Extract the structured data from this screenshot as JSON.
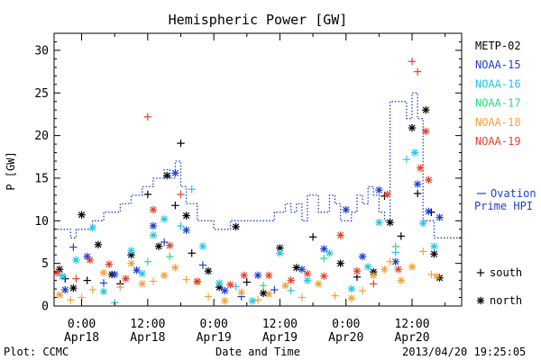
{
  "chart_data": {
    "type": "scatter",
    "title": "Hemispheric Power [GW]",
    "ylabel": "P [GW]",
    "xlabel": "Date and Time",
    "footer_left": "Plot: CCMC",
    "footer_right": "2013/04/20 19:25:05",
    "xlim": [
      "2013-04-17 19:00",
      "2013-04-20 21:00"
    ],
    "ylim": [
      0,
      32
    ],
    "yticks": [
      0,
      5,
      10,
      15,
      20,
      25,
      30
    ],
    "xticks": [
      {
        "x": "2013-04-18 00:00",
        "line1": "0:00",
        "line2": "Apr18"
      },
      {
        "x": "2013-04-18 12:00",
        "line1": "12:00",
        "line2": "Apr18"
      },
      {
        "x": "2013-04-19 00:00",
        "line1": "0:00",
        "line2": "Apr19"
      },
      {
        "x": "2013-04-19 12:00",
        "line1": "12:00",
        "line2": "Apr19"
      },
      {
        "x": "2013-04-20 00:00",
        "line1": "0:00",
        "line2": "Apr20"
      },
      {
        "x": "2013-04-20 12:00",
        "line1": "12:00",
        "line2": "Apr20"
      }
    ],
    "markers": [
      {
        "symbol": "+",
        "label": "south"
      },
      {
        "symbol": "*",
        "label": "north"
      }
    ],
    "ovation": {
      "name": "Ovation Prime HPI",
      "label_line1": "Ovation",
      "label_line2": "Prime HPI",
      "color": "#1f3fd0",
      "steps": [
        [
          "2013-04-17 19:00",
          9
        ],
        [
          "2013-04-17 22:00",
          8
        ],
        [
          "2013-04-17 23:00",
          9
        ],
        [
          "2013-04-18 02:00",
          10
        ],
        [
          "2013-04-18 04:00",
          11
        ],
        [
          "2013-04-18 07:00",
          12
        ],
        [
          "2013-04-18 09:00",
          13
        ],
        [
          "2013-04-18 11:00",
          14
        ],
        [
          "2013-04-18 13:00",
          15
        ],
        [
          "2013-04-18 15:00",
          16
        ],
        [
          "2013-04-18 16:00",
          15
        ],
        [
          "2013-04-18 17:00",
          17
        ],
        [
          "2013-04-18 18:00",
          14
        ],
        [
          "2013-04-18 19:00",
          12
        ],
        [
          "2013-04-18 21:00",
          10
        ],
        [
          "2013-04-19 00:00",
          9
        ],
        [
          "2013-04-19 03:00",
          10
        ],
        [
          "2013-04-19 08:00",
          10
        ],
        [
          "2013-04-19 11:00",
          11
        ],
        [
          "2013-04-19 13:00",
          12
        ],
        [
          "2013-04-19 14:00",
          11
        ],
        [
          "2013-04-19 15:00",
          12
        ],
        [
          "2013-04-19 16:00",
          10
        ],
        [
          "2013-04-19 17:00",
          13
        ],
        [
          "2013-04-19 19:00",
          11
        ],
        [
          "2013-04-19 21:00",
          13
        ],
        [
          "2013-04-19 22:00",
          12
        ],
        [
          "2013-04-19 23:00",
          10
        ],
        [
          "2013-04-20 01:00",
          11
        ],
        [
          "2013-04-20 02:00",
          13
        ],
        [
          "2013-04-20 03:00",
          12
        ],
        [
          "2013-04-20 04:00",
          14
        ],
        [
          "2013-04-20 05:00",
          13
        ],
        [
          "2013-04-20 06:00",
          11
        ],
        [
          "2013-04-20 07:00",
          10
        ],
        [
          "2013-04-20 08:00",
          24
        ],
        [
          "2013-04-20 11:00",
          22
        ],
        [
          "2013-04-20 12:00",
          25
        ],
        [
          "2013-04-20 13:00",
          22
        ],
        [
          "2013-04-20 14:00",
          10
        ],
        [
          "2013-04-20 16:00",
          8
        ],
        [
          "2013-04-20 18:00",
          8
        ]
      ]
    },
    "series": [
      {
        "name": "METP-02",
        "color": "#000000",
        "points": [
          [
            "2013-04-17 20:00",
            4.3,
            "*"
          ],
          [
            "2013-04-17 21:00",
            3.2,
            "+"
          ],
          [
            "2013-04-17 22:30",
            2.1,
            "*"
          ],
          [
            "2013-04-18 00:00",
            10.7,
            "*"
          ],
          [
            "2013-04-18 01:00",
            3.0,
            "+"
          ],
          [
            "2013-04-18 03:00",
            7.2,
            "*"
          ],
          [
            "2013-04-18 05:30",
            3.7,
            "*"
          ],
          [
            "2013-04-18 07:00",
            2.6,
            "+"
          ],
          [
            "2013-04-18 09:00",
            6.0,
            "*"
          ],
          [
            "2013-04-18 12:00",
            13.1,
            "+"
          ],
          [
            "2013-04-18 14:00",
            7.0,
            "*"
          ],
          [
            "2013-04-18 15:30",
            15.3,
            "*"
          ],
          [
            "2013-04-18 17:00",
            11.8,
            "+"
          ],
          [
            "2013-04-18 18:00",
            19.1,
            "+"
          ],
          [
            "2013-04-18 19:00",
            10.6,
            "*"
          ],
          [
            "2013-04-18 20:00",
            6.2,
            "+"
          ],
          [
            "2013-04-18 23:00",
            4.1,
            "*"
          ],
          [
            "2013-04-19 01:00",
            2.2,
            "*"
          ],
          [
            "2013-04-19 04:00",
            9.3,
            "*"
          ],
          [
            "2013-04-19 06:00",
            2.8,
            "+"
          ],
          [
            "2013-04-19 09:00",
            1.5,
            "*"
          ],
          [
            "2013-04-19 12:00",
            6.8,
            "*"
          ],
          [
            "2013-04-19 15:00",
            4.5,
            "*"
          ],
          [
            "2013-04-19 18:00",
            8.1,
            "+"
          ],
          [
            "2013-04-19 23:00",
            5.0,
            "*"
          ],
          [
            "2013-04-20 02:00",
            3.4,
            "+"
          ],
          [
            "2013-04-20 05:00",
            4.0,
            "*"
          ],
          [
            "2013-04-20 07:00",
            12.9,
            "+"
          ],
          [
            "2013-04-20 08:00",
            9.8,
            "*"
          ],
          [
            "2013-04-20 10:00",
            8.2,
            "+"
          ],
          [
            "2013-04-20 12:00",
            20.9,
            "*"
          ],
          [
            "2013-04-20 13:00",
            13.2,
            "+"
          ],
          [
            "2013-04-20 14:30",
            23.0,
            "*"
          ],
          [
            "2013-04-20 15:30",
            11.0,
            "+"
          ],
          [
            "2013-04-20 16:00",
            6.1,
            "*"
          ],
          [
            "2013-04-20 17:00",
            3.3,
            "*"
          ]
        ]
      },
      {
        "name": "NOAA-15",
        "color": "#1f3fd0",
        "points": [
          [
            "2013-04-17 21:00",
            1.9,
            "*"
          ],
          [
            "2013-04-17 22:30",
            6.9,
            "+"
          ],
          [
            "2013-04-18 01:00",
            5.8,
            "*"
          ],
          [
            "2013-04-18 04:00",
            2.7,
            "+"
          ],
          [
            "2013-04-18 06:00",
            3.7,
            "*"
          ],
          [
            "2013-04-18 10:00",
            4.2,
            "*"
          ],
          [
            "2013-04-18 13:00",
            9.4,
            "*"
          ],
          [
            "2013-04-18 15:00",
            7.5,
            "+"
          ],
          [
            "2013-04-18 17:00",
            15.6,
            "*"
          ],
          [
            "2013-04-18 19:00",
            8.9,
            "*"
          ],
          [
            "2013-04-18 22:00",
            4.8,
            "+"
          ],
          [
            "2013-04-19 02:00",
            1.8,
            "*"
          ],
          [
            "2013-04-19 05:00",
            1.1,
            "+"
          ],
          [
            "2013-04-19 08:00",
            3.6,
            "*"
          ],
          [
            "2013-04-19 11:00",
            1.9,
            "+"
          ],
          [
            "2013-04-19 16:00",
            4.3,
            "*"
          ],
          [
            "2013-04-19 20:00",
            6.7,
            "*"
          ],
          [
            "2013-04-20 00:00",
            11.3,
            "*"
          ],
          [
            "2013-04-20 03:00",
            5.8,
            "*"
          ],
          [
            "2013-04-20 06:00",
            13.6,
            "*"
          ],
          [
            "2013-04-20 09:00",
            5.2,
            "*"
          ],
          [
            "2013-04-20 13:00",
            14.3,
            "*"
          ],
          [
            "2013-04-20 15:00",
            11.1,
            "*"
          ],
          [
            "2013-04-20 17:00",
            10.4,
            "*"
          ]
        ]
      },
      {
        "name": "NOAA-16",
        "color": "#22c6e6",
        "points": [
          [
            "2013-04-17 20:30",
            3.5,
            "*"
          ],
          [
            "2013-04-17 23:00",
            5.4,
            "*"
          ],
          [
            "2013-04-18 02:00",
            9.2,
            "*"
          ],
          [
            "2013-04-18 04:00",
            1.7,
            "*"
          ],
          [
            "2013-04-18 06:00",
            0.4,
            "+"
          ],
          [
            "2013-04-18 09:00",
            6.5,
            "*"
          ],
          [
            "2013-04-18 11:00",
            3.8,
            "*"
          ],
          [
            "2013-04-18 13:00",
            8.3,
            "*"
          ],
          [
            "2013-04-18 15:00",
            10.2,
            "*"
          ],
          [
            "2013-04-18 18:00",
            9.4,
            "+"
          ],
          [
            "2013-04-18 20:00",
            13.7,
            "+"
          ],
          [
            "2013-04-18 22:00",
            7.0,
            "*"
          ],
          [
            "2013-04-19 01:00",
            2.7,
            "*"
          ],
          [
            "2013-04-19 04:00",
            2.3,
            "+"
          ],
          [
            "2013-04-19 07:00",
            0.6,
            "*"
          ],
          [
            "2013-04-19 12:00",
            6.2,
            "*"
          ],
          [
            "2013-04-19 14:00",
            1.8,
            "+"
          ],
          [
            "2013-04-19 17:00",
            3.0,
            "*"
          ],
          [
            "2013-04-19 21:00",
            6.2,
            "*"
          ],
          [
            "2013-04-20 01:00",
            2.0,
            "*"
          ],
          [
            "2013-04-20 04:00",
            4.6,
            "*"
          ],
          [
            "2013-04-20 06:00",
            9.8,
            "*"
          ],
          [
            "2013-04-20 09:00",
            6.3,
            "+"
          ],
          [
            "2013-04-20 11:00",
            17.2,
            "+"
          ],
          [
            "2013-04-20 12:30",
            18.0,
            "*"
          ],
          [
            "2013-04-20 14:00",
            9.7,
            "*"
          ],
          [
            "2013-04-20 16:00",
            7.0,
            "*"
          ]
        ]
      },
      {
        "name": "NOAA-17",
        "color": "#27e07a",
        "points": [
          [
            "2013-04-18 12:00",
            5.2,
            "+"
          ],
          [
            "2013-04-18 16:00",
            5.8,
            "+"
          ],
          [
            "2013-04-19 09:00",
            2.4,
            "+"
          ],
          [
            "2013-04-19 20:00",
            5.6,
            "+"
          ],
          [
            "2013-04-20 09:00",
            7.0,
            "+"
          ]
        ]
      },
      {
        "name": "NOAA-18",
        "color": "#f2a23a",
        "points": [
          [
            "2013-04-17 20:00",
            1.3,
            "*"
          ],
          [
            "2013-04-17 22:00",
            0.7,
            "+"
          ],
          [
            "2013-04-18 00:00",
            1.0,
            "+"
          ],
          [
            "2013-04-18 02:00",
            1.9,
            "+"
          ],
          [
            "2013-04-18 04:00",
            3.9,
            "*"
          ],
          [
            "2013-04-18 07:00",
            2.2,
            "+"
          ],
          [
            "2013-04-18 09:00",
            5.0,
            "*"
          ],
          [
            "2013-04-18 11:00",
            2.6,
            "*"
          ],
          [
            "2013-04-18 13:00",
            2.9,
            "+"
          ],
          [
            "2013-04-18 15:00",
            3.6,
            "*"
          ],
          [
            "2013-04-18 17:00",
            4.5,
            "*"
          ],
          [
            "2013-04-18 19:00",
            3.1,
            "+"
          ],
          [
            "2013-04-18 21:00",
            2.8,
            "*"
          ],
          [
            "2013-04-18 23:00",
            1.1,
            "+"
          ],
          [
            "2013-04-19 02:00",
            0.6,
            "*"
          ],
          [
            "2013-04-19 05:00",
            1.6,
            "*"
          ],
          [
            "2013-04-19 08:00",
            0.7,
            "+"
          ],
          [
            "2013-04-19 10:00",
            1.4,
            "*"
          ],
          [
            "2013-04-19 13:00",
            2.4,
            "*"
          ],
          [
            "2013-04-19 16:00",
            1.0,
            "+"
          ],
          [
            "2013-04-19 19:00",
            2.6,
            "*"
          ],
          [
            "2013-04-19 22:00",
            1.2,
            "+"
          ],
          [
            "2013-04-20 01:00",
            0.9,
            "*"
          ],
          [
            "2013-04-20 03:00",
            1.8,
            "+"
          ],
          [
            "2013-04-20 05:00",
            3.6,
            "*"
          ],
          [
            "2013-04-20 07:00",
            4.3,
            "*"
          ],
          [
            "2013-04-20 08:00",
            5.2,
            "+"
          ],
          [
            "2013-04-20 10:00",
            3.0,
            "*"
          ],
          [
            "2013-04-20 12:00",
            4.6,
            "*"
          ],
          [
            "2013-04-20 14:00",
            6.4,
            "+"
          ],
          [
            "2013-04-20 15:30",
            3.7,
            "+"
          ],
          [
            "2013-04-20 16:30",
            3.5,
            "*"
          ]
        ]
      },
      {
        "name": "NOAA-19",
        "color": "#e8402a",
        "points": [
          [
            "2013-04-17 19:30",
            3.9,
            "*"
          ],
          [
            "2013-04-17 23:00",
            3.2,
            "+"
          ],
          [
            "2013-04-18 01:30",
            5.4,
            "*"
          ],
          [
            "2013-04-18 05:00",
            4.9,
            "*"
          ],
          [
            "2013-04-18 08:00",
            3.2,
            "*"
          ],
          [
            "2013-04-18 12:00",
            22.2,
            "+"
          ],
          [
            "2013-04-18 13:00",
            11.3,
            "*"
          ],
          [
            "2013-04-18 16:00",
            7.1,
            "*"
          ],
          [
            "2013-04-18 18:00",
            13.1,
            "+"
          ],
          [
            "2013-04-18 21:00",
            2.9,
            "*"
          ],
          [
            "2013-04-19 03:00",
            2.5,
            "*"
          ],
          [
            "2013-04-19 05:30",
            3.6,
            "*"
          ],
          [
            "2013-04-19 10:00",
            3.6,
            "*"
          ],
          [
            "2013-04-19 14:00",
            3.0,
            "*"
          ],
          [
            "2013-04-19 17:00",
            3.8,
            "*"
          ],
          [
            "2013-04-19 20:00",
            3.5,
            "*"
          ],
          [
            "2013-04-19 23:00",
            8.3,
            "*"
          ],
          [
            "2013-04-20 02:00",
            4.1,
            "*"
          ],
          [
            "2013-04-20 05:00",
            2.6,
            "+"
          ],
          [
            "2013-04-20 07:30",
            13.1,
            "*"
          ],
          [
            "2013-04-20 09:30",
            4.3,
            "*"
          ],
          [
            "2013-04-20 12:00",
            28.7,
            "+"
          ],
          [
            "2013-04-20 13:00",
            27.5,
            "+"
          ],
          [
            "2013-04-20 13:30",
            16.2,
            "*"
          ],
          [
            "2013-04-20 14:30",
            20.5,
            "*"
          ],
          [
            "2013-04-20 15:00",
            14.8,
            "*"
          ]
        ]
      }
    ]
  }
}
